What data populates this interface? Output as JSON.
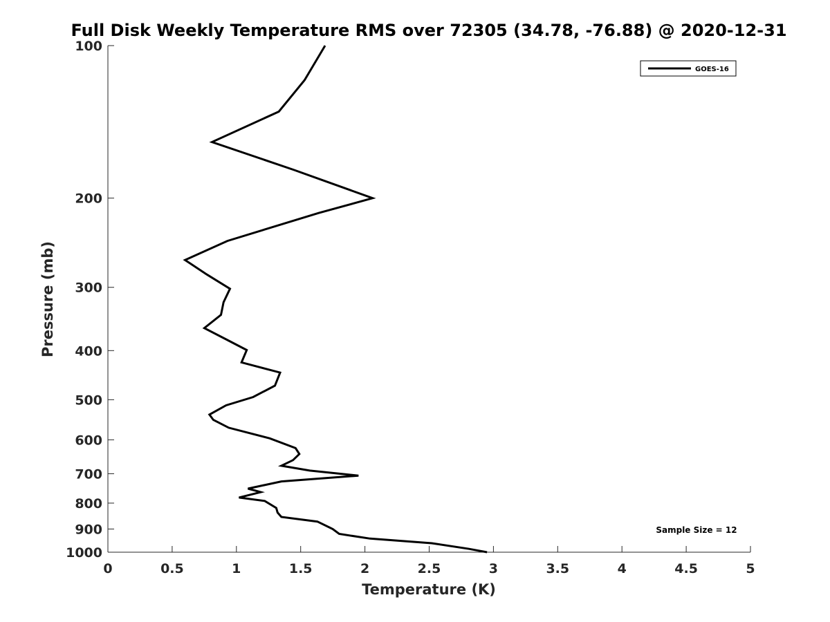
{
  "chart_data": {
    "type": "line",
    "title": "Full Disk Weekly Temperature RMS over 72305 (34.78, -76.88) @ 2020-12-31",
    "xlabel": "Temperature (K)",
    "ylabel": "Pressure (mb)",
    "xlim": [
      0,
      5
    ],
    "ylim": [
      1000,
      100
    ],
    "yscale": "log",
    "y_reversed": true,
    "grid": false,
    "legend_position": "top-right",
    "x_ticks": [
      0,
      0.5,
      1,
      1.5,
      2,
      2.5,
      3,
      3.5,
      4,
      4.5,
      5
    ],
    "x_tick_labels": [
      "0",
      "0.5",
      "1",
      "1.5",
      "2",
      "2.5",
      "3",
      "3.5",
      "4",
      "4.5",
      "5"
    ],
    "y_ticks": [
      100,
      200,
      300,
      400,
      500,
      600,
      700,
      800,
      900,
      1000
    ],
    "y_tick_labels": [
      "100",
      "200",
      "300",
      "400",
      "500",
      "600",
      "700",
      "800",
      "900",
      "1000"
    ],
    "annotation": "Sample Size = 12",
    "series": [
      {
        "name": "GOES-16",
        "color": "#000000",
        "x": [
          1.69,
          1.53,
          1.33,
          0.81,
          1.45,
          2.06,
          1.64,
          0.93,
          0.6,
          0.77,
          0.95,
          0.9,
          0.88,
          0.75,
          0.92,
          1.08,
          1.04,
          1.34,
          1.3,
          1.13,
          0.92,
          0.79,
          0.82,
          0.94,
          1.26,
          1.46,
          1.49,
          1.44,
          1.35,
          1.57,
          1.95,
          1.35,
          1.09,
          1.19,
          1.02,
          1.22,
          1.31,
          1.32,
          1.35,
          1.63,
          1.75,
          1.8,
          2.04,
          2.52,
          2.81,
          2.95
        ],
        "y": [
          100,
          117,
          135,
          155,
          176,
          200,
          214,
          243,
          265,
          283,
          302,
          321,
          340,
          361,
          380,
          399,
          422,
          442,
          469,
          494,
          513,
          535,
          548,
          568,
          596,
          623,
          640,
          658,
          675,
          690,
          706,
          725,
          749,
          761,
          780,
          792,
          818,
          835,
          852,
          870,
          900,
          920,
          940,
          960,
          985,
          1000
        ]
      }
    ]
  }
}
